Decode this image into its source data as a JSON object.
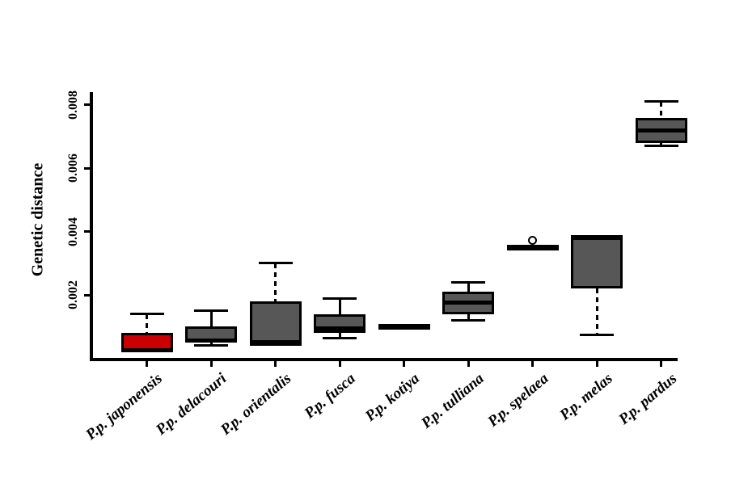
{
  "chart_data": {
    "type": "box",
    "title": "",
    "xlabel": "",
    "ylabel": "Genetic distance",
    "ylim": [
      0,
      0.0085
    ],
    "yticks": [
      0.002,
      0.004,
      0.006,
      0.008
    ],
    "ytick_labels": [
      "0.002",
      "0.004",
      "0.006",
      "0.008"
    ],
    "grid": false,
    "legend": null,
    "categories": [
      "P.p. japonensis",
      "P.p. delacouri",
      "P.p. orientalis",
      "P.p. fusca",
      "P.p. kotiya",
      "P.p. tulliana",
      "P.p. spelaea",
      "P.p. melas",
      "P.p. pardus"
    ],
    "boxes": [
      {
        "label": "P.p. japonensis",
        "fill": "#cc0000",
        "whisker_low": 0.0002,
        "q1": 0.0002,
        "median": 0.00025,
        "q3": 0.0008,
        "whisker_high": 0.0014,
        "dashed_low": false,
        "dashed_high": true,
        "outliers": []
      },
      {
        "label": "P.p. delacouri",
        "fill": "#575757",
        "whisker_low": 0.0004,
        "q1": 0.0005,
        "median": 0.00055,
        "q3": 0.001,
        "whisker_high": 0.0015,
        "dashed_low": false,
        "dashed_high": false,
        "outliers": []
      },
      {
        "label": "P.p. orientalis",
        "fill": "#575757",
        "whisker_low": 0.0004,
        "q1": 0.0004,
        "median": 0.0005,
        "q3": 0.0018,
        "whisker_high": 0.003,
        "dashed_low": false,
        "dashed_high": true,
        "outliers": []
      },
      {
        "label": "P.p. fusca",
        "fill": "#575757",
        "whisker_low": 0.00065,
        "q1": 0.0008,
        "median": 0.00095,
        "q3": 0.0014,
        "whisker_high": 0.0019,
        "dashed_low": false,
        "dashed_high": false,
        "outliers": []
      },
      {
        "label": "P.p. kotiya",
        "fill": "#575757",
        "whisker_low": 0.001,
        "q1": 0.001,
        "median": 0.001,
        "q3": 0.001,
        "whisker_high": 0.001,
        "dashed_low": false,
        "dashed_high": false,
        "outliers": []
      },
      {
        "label": "P.p. tulliana",
        "fill": "#575757",
        "whisker_low": 0.0012,
        "q1": 0.0014,
        "median": 0.00175,
        "q3": 0.0021,
        "whisker_high": 0.0024,
        "dashed_low": false,
        "dashed_high": false,
        "outliers": []
      },
      {
        "label": "P.p. spelaea",
        "fill": "#575757",
        "whisker_low": 0.0035,
        "q1": 0.0035,
        "median": 0.0035,
        "q3": 0.0035,
        "whisker_high": 0.0035,
        "dashed_low": false,
        "dashed_high": false,
        "outliers": [
          0.0037
        ]
      },
      {
        "label": "P.p. melas",
        "fill": "#575757",
        "whisker_low": 0.00075,
        "q1": 0.0022,
        "median": 0.0038,
        "q3": 0.0039,
        "whisker_high": 0.0039,
        "dashed_low": true,
        "dashed_high": false,
        "outliers": []
      },
      {
        "label": "P.p. pardus",
        "fill": "#575757",
        "whisker_low": 0.0067,
        "q1": 0.0068,
        "median": 0.0072,
        "q3": 0.0076,
        "whisker_high": 0.0081,
        "dashed_low": false,
        "dashed_high": true,
        "outliers": []
      }
    ],
    "colors": {
      "highlight_fill": "#cc0000",
      "box_fill": "#575757",
      "stroke": "#000000",
      "background": "#ffffff"
    }
  }
}
